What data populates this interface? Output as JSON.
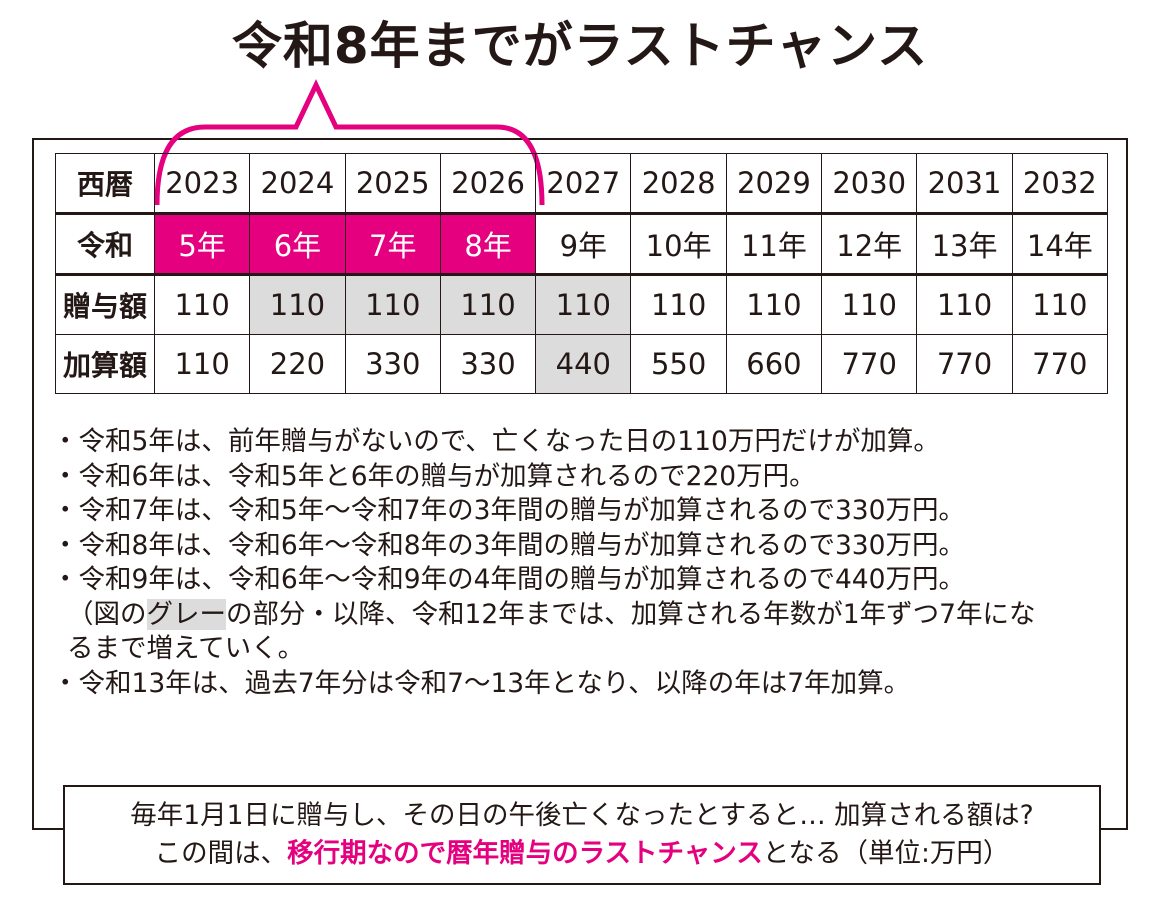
{
  "title": "令和8年までがラストチャンス",
  "table": {
    "row_headers": [
      "西暦",
      "令和",
      "贈与額",
      "加算額"
    ],
    "years": [
      "2023",
      "2024",
      "2025",
      "2026",
      "2027",
      "2028",
      "2029",
      "2030",
      "2031",
      "2032"
    ],
    "reiwa": [
      "5年",
      "6年",
      "7年",
      "8年",
      "9年",
      "10年",
      "11年",
      "12年",
      "13年",
      "14年"
    ],
    "gift": [
      "110",
      "110",
      "110",
      "110",
      "110",
      "110",
      "110",
      "110",
      "110",
      "110"
    ],
    "added": [
      "110",
      "220",
      "330",
      "330",
      "440",
      "550",
      "660",
      "770",
      "770",
      "770"
    ],
    "highlight_reiwa_cols": [
      0,
      1,
      2,
      3
    ],
    "gray_gift_cols": [
      1,
      2,
      3,
      4
    ],
    "gray_added_cols": [
      4
    ]
  },
  "notes": {
    "n1": "・令和5年は、前年贈与がないので、亡くなった日の110万円だけが加算。",
    "n2": "・令和6年は、令和5年と6年の贈与が加算されるので220万円。",
    "n3": "・令和7年は、令和5年～令和7年の3年間の贈与が加算されるので330万円。",
    "n4": "・令和8年は、令和6年～令和8年の3年間の贈与が加算されるので330万円。",
    "n5": "・令和9年は、令和6年～令和9年の4年間の贈与が加算されるので440万円。",
    "n6a": "（図の",
    "n6b": "グレー",
    "n6c": "の部分・以降、令和12年までは、加算される年数が1年ずつ7年にな",
    "n7": "るまで増えていく。",
    "n8": "・令和13年は、過去7年分は令和7～13年となり、以降の年は7年加算。"
  },
  "bottom": {
    "line1": "毎年1月1日に贈与し、その日の午後亡くなったとすると…  加算される額は?",
    "line2a": "この間は、",
    "line2b": "移行期なので暦年贈与のラストチャンス",
    "line2c": "となる（単位:万円）"
  },
  "colors": {
    "accent": "#e4007f",
    "gray": "#dcdcdc",
    "ink": "#231815"
  }
}
